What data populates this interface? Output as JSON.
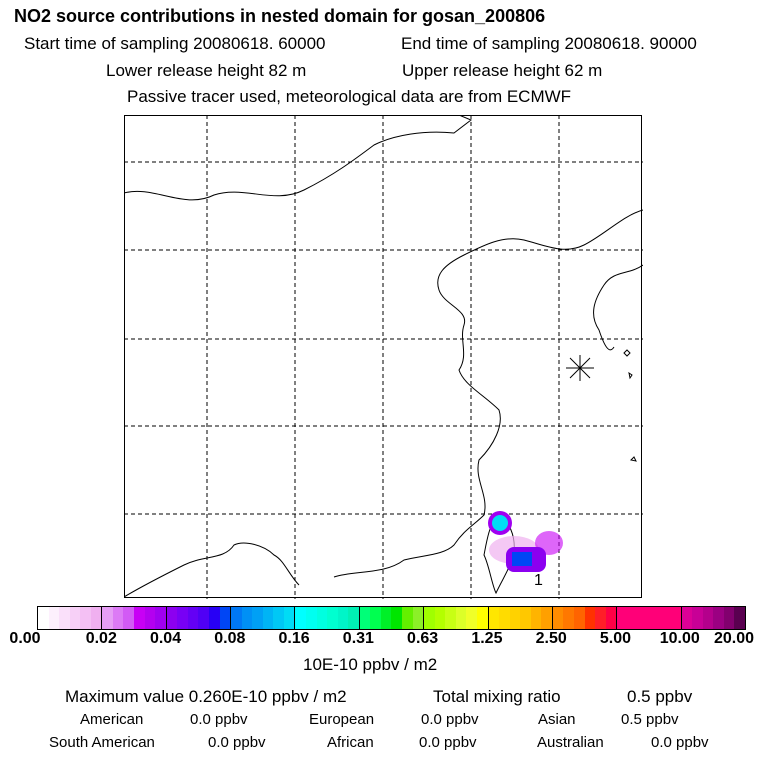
{
  "title": "NO2 source contributions in nested domain for gosan_200806",
  "start_time": "Start time of sampling 20080618. 60000",
  "end_time": "End time of sampling 20080618. 90000",
  "lower_height": "Lower release height   82 m",
  "upper_height": "Upper release height   62 m",
  "note": "Passive tracer used, meteorological data are from ECMWF",
  "map": {
    "receptor_marker": "asterisk-icon",
    "plume_label": "1"
  },
  "colorbar": {
    "ticks": [
      "0.00",
      "0.02",
      "0.04",
      "0.08",
      "0.16",
      "0.31",
      "0.63",
      "1.25",
      "2.50",
      "5.00",
      "10.00",
      "20.00"
    ],
    "unit": "10E-10 ppbv / m2",
    "segments": [
      [
        "#ffffff",
        "#fdf0fd",
        "#fae0fa",
        "#f7d0f7",
        "#f4c0f4",
        "#f0b0f0"
      ],
      [
        "#e69ef5",
        "#dc7af5",
        "#d25af5",
        "#c800f5",
        "#b400f0",
        "#a000f0"
      ],
      [
        "#8c00f0",
        "#7800f5",
        "#6400f5",
        "#5000f5",
        "#2800f5",
        "#0046f5"
      ],
      [
        "#0078f5",
        "#0090f5",
        "#00a0f5",
        "#00b4f5",
        "#00c8f5",
        "#00dcf5"
      ],
      [
        "#00ffff",
        "#00fff0",
        "#00ffe0",
        "#00ffd0",
        "#00f5c8",
        "#00f0b4"
      ],
      [
        "#00ff78",
        "#00ff50",
        "#00f028",
        "#00e600",
        "#64f000",
        "#8cf028"
      ],
      [
        "#a0ff00",
        "#b4ff00",
        "#c8ff14",
        "#dcff28",
        "#f0ff28",
        "#ffff00"
      ],
      [
        "#ffe600",
        "#ffdc00",
        "#ffd200",
        "#ffc800",
        "#ffb400",
        "#ffa000"
      ],
      [
        "#ff8c00",
        "#ff7800",
        "#ff6400",
        "#ff3200",
        "#ff1e28",
        "#ff0046"
      ],
      [
        "#ff0078",
        "#ff0078",
        "#ff0078",
        "#ff0078",
        "#ff0078",
        "#ff0078"
      ],
      [
        "#dc0096",
        "#c80096",
        "#b4008c",
        "#9b0082",
        "#82006e",
        "#5a0050"
      ]
    ]
  },
  "summary": {
    "max_value": "Maximum value  0.260E-10 ppbv / m2",
    "total_label": "Total mixing ratio",
    "total_value": "0.5 ppbv",
    "regions": [
      {
        "name": "American",
        "value": "0.0 ppbv"
      },
      {
        "name": "European",
        "value": "0.0 ppbv"
      },
      {
        "name": "Asian",
        "value": "0.5 ppbv"
      },
      {
        "name": "South American",
        "value": "0.0 ppbv"
      },
      {
        "name": "African",
        "value": "0.0 ppbv"
      },
      {
        "name": "Australian",
        "value": "0.0 ppbv"
      }
    ]
  }
}
